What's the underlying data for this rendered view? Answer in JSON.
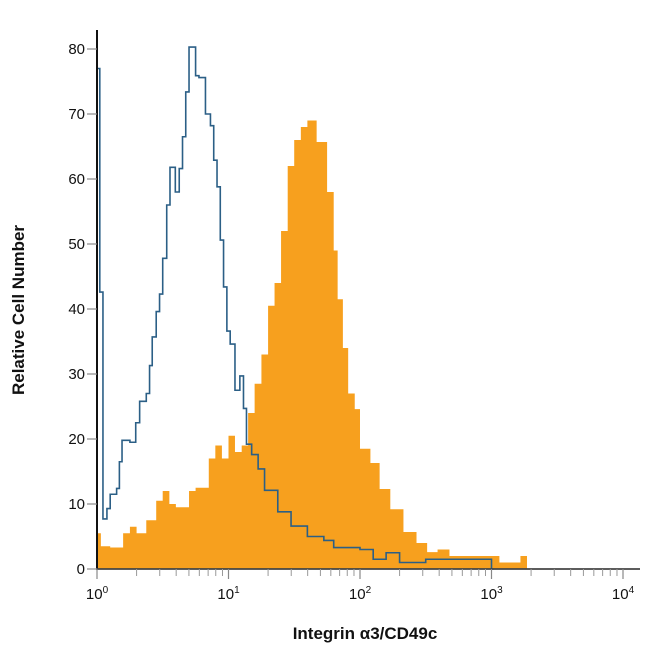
{
  "chart_data": {
    "type": "histogram",
    "title": "",
    "xlabel": "Integrin α3/CD49c",
    "ylabel": "Relative Cell Number",
    "x_scale": "log",
    "xlim": [
      1,
      10000
    ],
    "ylim": [
      0,
      80
    ],
    "x_ticks": [
      {
        "base": "10",
        "exp": "0"
      },
      {
        "base": "10",
        "exp": "1"
      },
      {
        "base": "10",
        "exp": "2"
      },
      {
        "base": "10",
        "exp": "3"
      },
      {
        "base": "10",
        "exp": "4"
      }
    ],
    "y_ticks": [
      0,
      10,
      20,
      30,
      40,
      50,
      60,
      70,
      80
    ],
    "grid": false,
    "legend": "none",
    "series": [
      {
        "style": "filled",
        "color": "#F7A01E",
        "points": [
          [
            1,
            5.5
          ],
          [
            1.07,
            3.5
          ],
          [
            1.26,
            3.3
          ],
          [
            1.58,
            5.5
          ],
          [
            1.78,
            6.5
          ],
          [
            2.0,
            5.5
          ],
          [
            2.37,
            7.5
          ],
          [
            2.82,
            10.5
          ],
          [
            3.16,
            12
          ],
          [
            3.55,
            10
          ],
          [
            3.98,
            9.5
          ],
          [
            5.01,
            12
          ],
          [
            5.62,
            12.5
          ],
          [
            7.08,
            17
          ],
          [
            7.94,
            19
          ],
          [
            8.91,
            17
          ],
          [
            10,
            20.5
          ],
          [
            11.2,
            18
          ],
          [
            12.6,
            19
          ],
          [
            14.1,
            24
          ],
          [
            15.8,
            28.5
          ],
          [
            17.8,
            33
          ],
          [
            20,
            40.5
          ],
          [
            22.4,
            44
          ],
          [
            25.1,
            52
          ],
          [
            28.2,
            62
          ],
          [
            31.6,
            66
          ],
          [
            35.5,
            68
          ],
          [
            39.8,
            69
          ],
          [
            46.8,
            65.7
          ],
          [
            56.2,
            58
          ],
          [
            63.1,
            49
          ],
          [
            67.6,
            41.5
          ],
          [
            74.1,
            34
          ],
          [
            81.3,
            27
          ],
          [
            91.2,
            24.6
          ],
          [
            100,
            18.5
          ],
          [
            120,
            16.3
          ],
          [
            141,
            12.3
          ],
          [
            170,
            9.2
          ],
          [
            214,
            5.7
          ],
          [
            269,
            4
          ],
          [
            324,
            2.6
          ],
          [
            389,
            3
          ],
          [
            479,
            2
          ],
          [
            724,
            2
          ],
          [
            933,
            2
          ],
          [
            1148,
            1
          ],
          [
            1660,
            2
          ],
          [
            1862,
            0
          ]
        ]
      },
      {
        "style": "outline",
        "color": "#2B5F86",
        "points": [
          [
            1,
            77
          ],
          [
            1.05,
            42.6
          ],
          [
            1.11,
            7.7
          ],
          [
            1.19,
            9.3
          ],
          [
            1.26,
            11.5
          ],
          [
            1.41,
            12.4
          ],
          [
            1.48,
            16.5
          ],
          [
            1.55,
            19.8
          ],
          [
            1.78,
            19.5
          ],
          [
            1.97,
            22.5
          ],
          [
            2.11,
            25.8
          ],
          [
            2.37,
            27
          ],
          [
            2.51,
            31.3
          ],
          [
            2.63,
            35.7
          ],
          [
            2.82,
            39.6
          ],
          [
            2.99,
            42.3
          ],
          [
            3.16,
            47.8
          ],
          [
            3.39,
            56
          ],
          [
            3.59,
            61.8
          ],
          [
            3.94,
            58
          ],
          [
            4.22,
            61.6
          ],
          [
            4.47,
            66.5
          ],
          [
            4.73,
            73.4
          ],
          [
            5.01,
            80.3
          ],
          [
            5.31,
            80.3
          ],
          [
            5.62,
            75.9
          ],
          [
            5.96,
            75.6
          ],
          [
            6.68,
            70
          ],
          [
            7.29,
            68.2
          ],
          [
            7.72,
            62.9
          ],
          [
            8.18,
            58.8
          ],
          [
            8.66,
            50.6
          ],
          [
            9.17,
            43.4
          ],
          [
            9.72,
            36.6
          ],
          [
            10.3,
            34.6
          ],
          [
            11.2,
            27.5
          ],
          [
            12.2,
            29.7
          ],
          [
            13.0,
            24.7
          ],
          [
            13.7,
            19.2
          ],
          [
            15.0,
            17.6
          ],
          [
            16.8,
            15.4
          ],
          [
            18.8,
            12.1
          ],
          [
            23.7,
            8.8
          ],
          [
            29.9,
            6.6
          ],
          [
            39.8,
            5
          ],
          [
            53.1,
            4.4
          ],
          [
            63.1,
            3.3
          ],
          [
            100,
            3
          ],
          [
            126,
            1.5
          ],
          [
            158,
            2.5
          ],
          [
            200,
            1
          ],
          [
            316,
            1.5
          ],
          [
            501,
            1.5
          ],
          [
            794,
            1.5
          ],
          [
            1000,
            0
          ]
        ]
      }
    ]
  }
}
